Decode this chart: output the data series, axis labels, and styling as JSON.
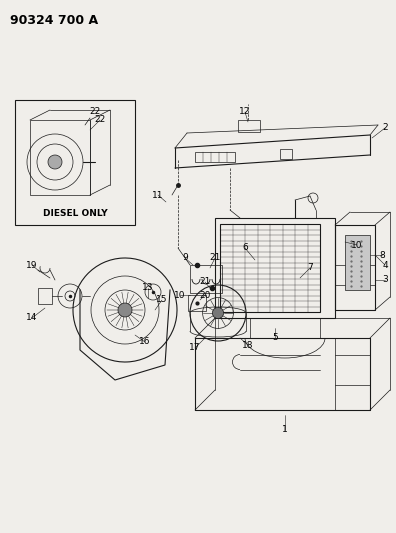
{
  "title": "90324 700 A",
  "bg": "#f0eeea",
  "lc": "#1a1a1a",
  "inset_label": "DIESEL ONLY",
  "figsize": [
    3.96,
    5.33
  ],
  "dpi": 100
}
